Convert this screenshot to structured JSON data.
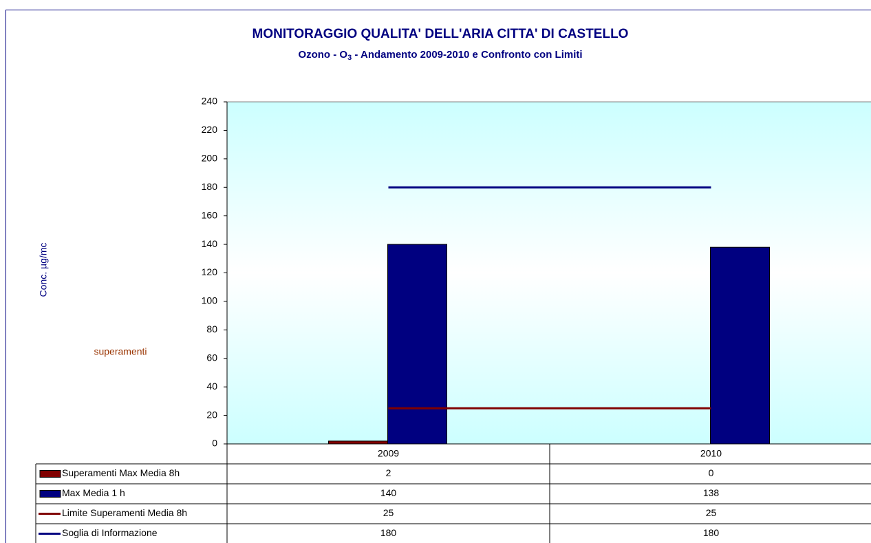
{
  "chart_data": {
    "type": "bar",
    "title": "MONITORAGGIO QUALITA' DELL'ARIA  CITTA' DI CASTELLO",
    "subtitle": [
      "Ozono - O",
      "3",
      " - Andamento 2009-2010 e Confronto con Limiti"
    ],
    "y_label": "Conc. µg/mc",
    "annotation": "superamenti",
    "categories": [
      "2009",
      "2010"
    ],
    "series": [
      {
        "name": "Superamenti Max Media  8h",
        "type": "bar",
        "color": "#800000",
        "values": [
          2,
          0
        ]
      },
      {
        "name": "Max Media 1 h",
        "type": "bar",
        "color": "#000080",
        "values": [
          140,
          138
        ]
      },
      {
        "name": "Limite Superamenti Media 8h",
        "type": "line",
        "color": "#800000",
        "values": [
          25,
          25
        ]
      },
      {
        "name": "Soglia di Informazione",
        "type": "line",
        "color": "#000080",
        "values": [
          180,
          180
        ]
      }
    ],
    "ylim": [
      0,
      240
    ],
    "yticks": [
      0,
      20,
      40,
      60,
      80,
      100,
      120,
      140,
      160,
      180,
      200,
      220,
      240
    ],
    "data_table": true
  }
}
